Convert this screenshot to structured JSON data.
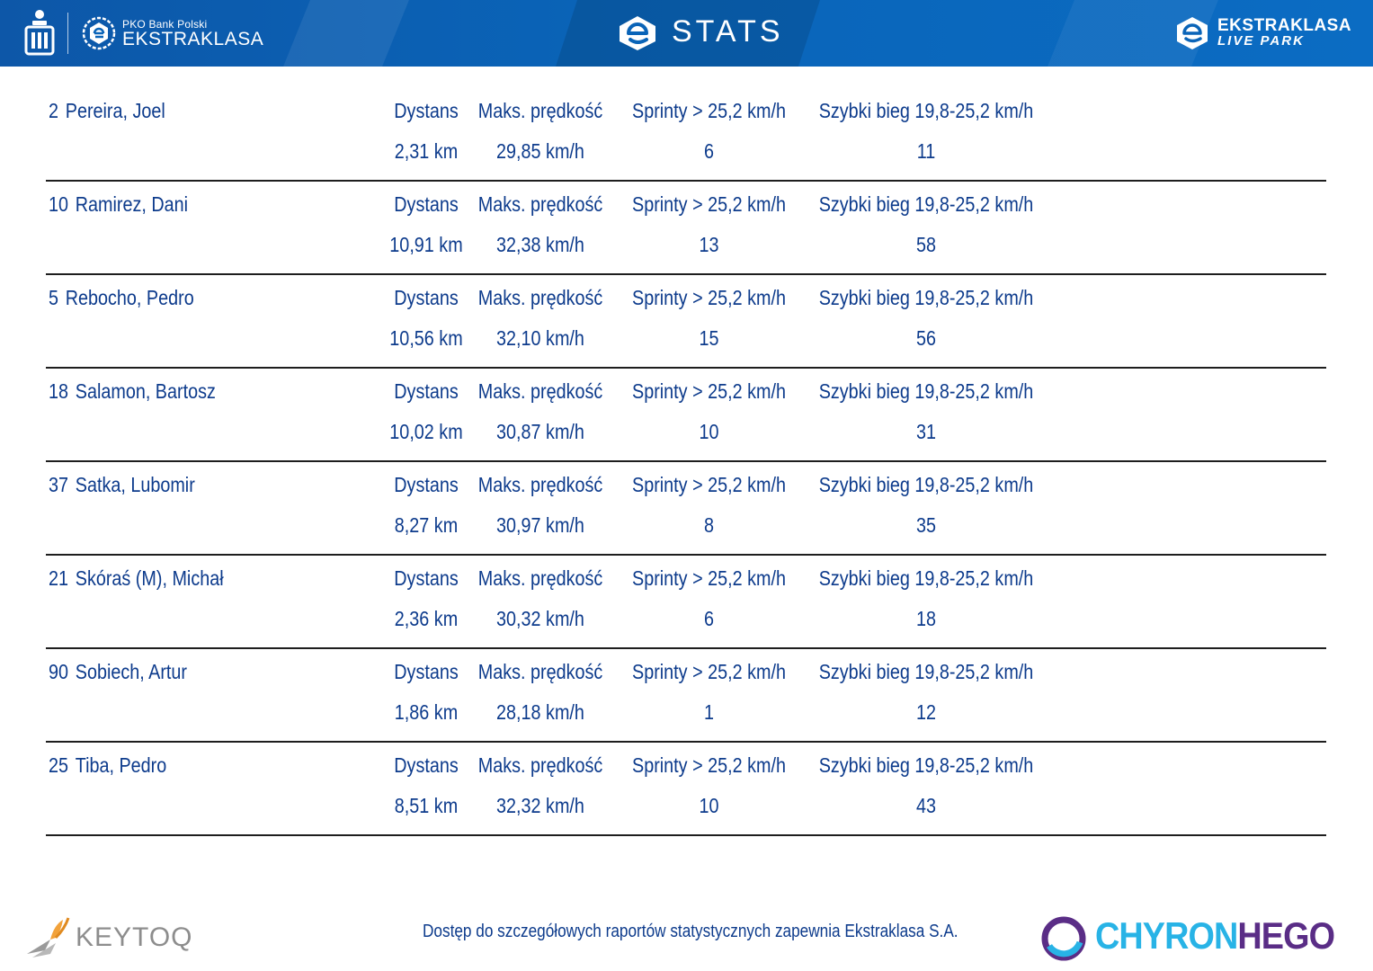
{
  "header": {
    "pko_small": "PKO Bank Polski",
    "league": "EKSTRAKLASA",
    "title": "STATS",
    "livepark_top": "EKSTRAKLASA",
    "livepark_bottom": "LIVE PARK"
  },
  "labels": {
    "distance": "Dystans",
    "max_speed": "Maks. prędkość",
    "sprints": "Sprinty > 25,2 km/h",
    "fast_run": "Szybki bieg 19,8-25,2 km/h"
  },
  "players": [
    {
      "number": "2",
      "name": "Pereira, Joel",
      "distance": "2,31 km",
      "max_speed": "29,85 km/h",
      "sprints": "6",
      "fast_run": "11"
    },
    {
      "number": "10",
      "name": "Ramirez, Dani",
      "distance": "10,91 km",
      "max_speed": "32,38 km/h",
      "sprints": "13",
      "fast_run": "58"
    },
    {
      "number": "5",
      "name": "Rebocho, Pedro",
      "distance": "10,56 km",
      "max_speed": "32,10 km/h",
      "sprints": "15",
      "fast_run": "56"
    },
    {
      "number": "18",
      "name": "Salamon, Bartosz",
      "distance": "10,02 km",
      "max_speed": "30,87 km/h",
      "sprints": "10",
      "fast_run": "31"
    },
    {
      "number": "37",
      "name": "Satka, Lubomir",
      "distance": "8,27 km",
      "max_speed": "30,97 km/h",
      "sprints": "8",
      "fast_run": "35"
    },
    {
      "number": "21",
      "name": "Skóraś (M), Michał",
      "distance": "2,36 km",
      "max_speed": "30,32 km/h",
      "sprints": "6",
      "fast_run": "18"
    },
    {
      "number": "90",
      "name": "Sobiech, Artur",
      "distance": "1,86 km",
      "max_speed": "28,18 km/h",
      "sprints": "1",
      "fast_run": "12"
    },
    {
      "number": "25",
      "name": "Tiba, Pedro",
      "distance": "8,51 km",
      "max_speed": "32,32 km/h",
      "sprints": "10",
      "fast_run": "43"
    }
  ],
  "footer": {
    "keytoq": "KEYTOQ",
    "note": "Dostęp do szczegółowych raportów statystycznych zapewnia Ekstraklasa S.A.",
    "chyron_a": "CHYRON",
    "chyron_b": "HEGO"
  },
  "colors": {
    "header_blue": "#0a64b8",
    "text_blue": "#0d3b8c",
    "chyron_cyan": "#28b3e6",
    "chyron_purple": "#5a2d86"
  }
}
